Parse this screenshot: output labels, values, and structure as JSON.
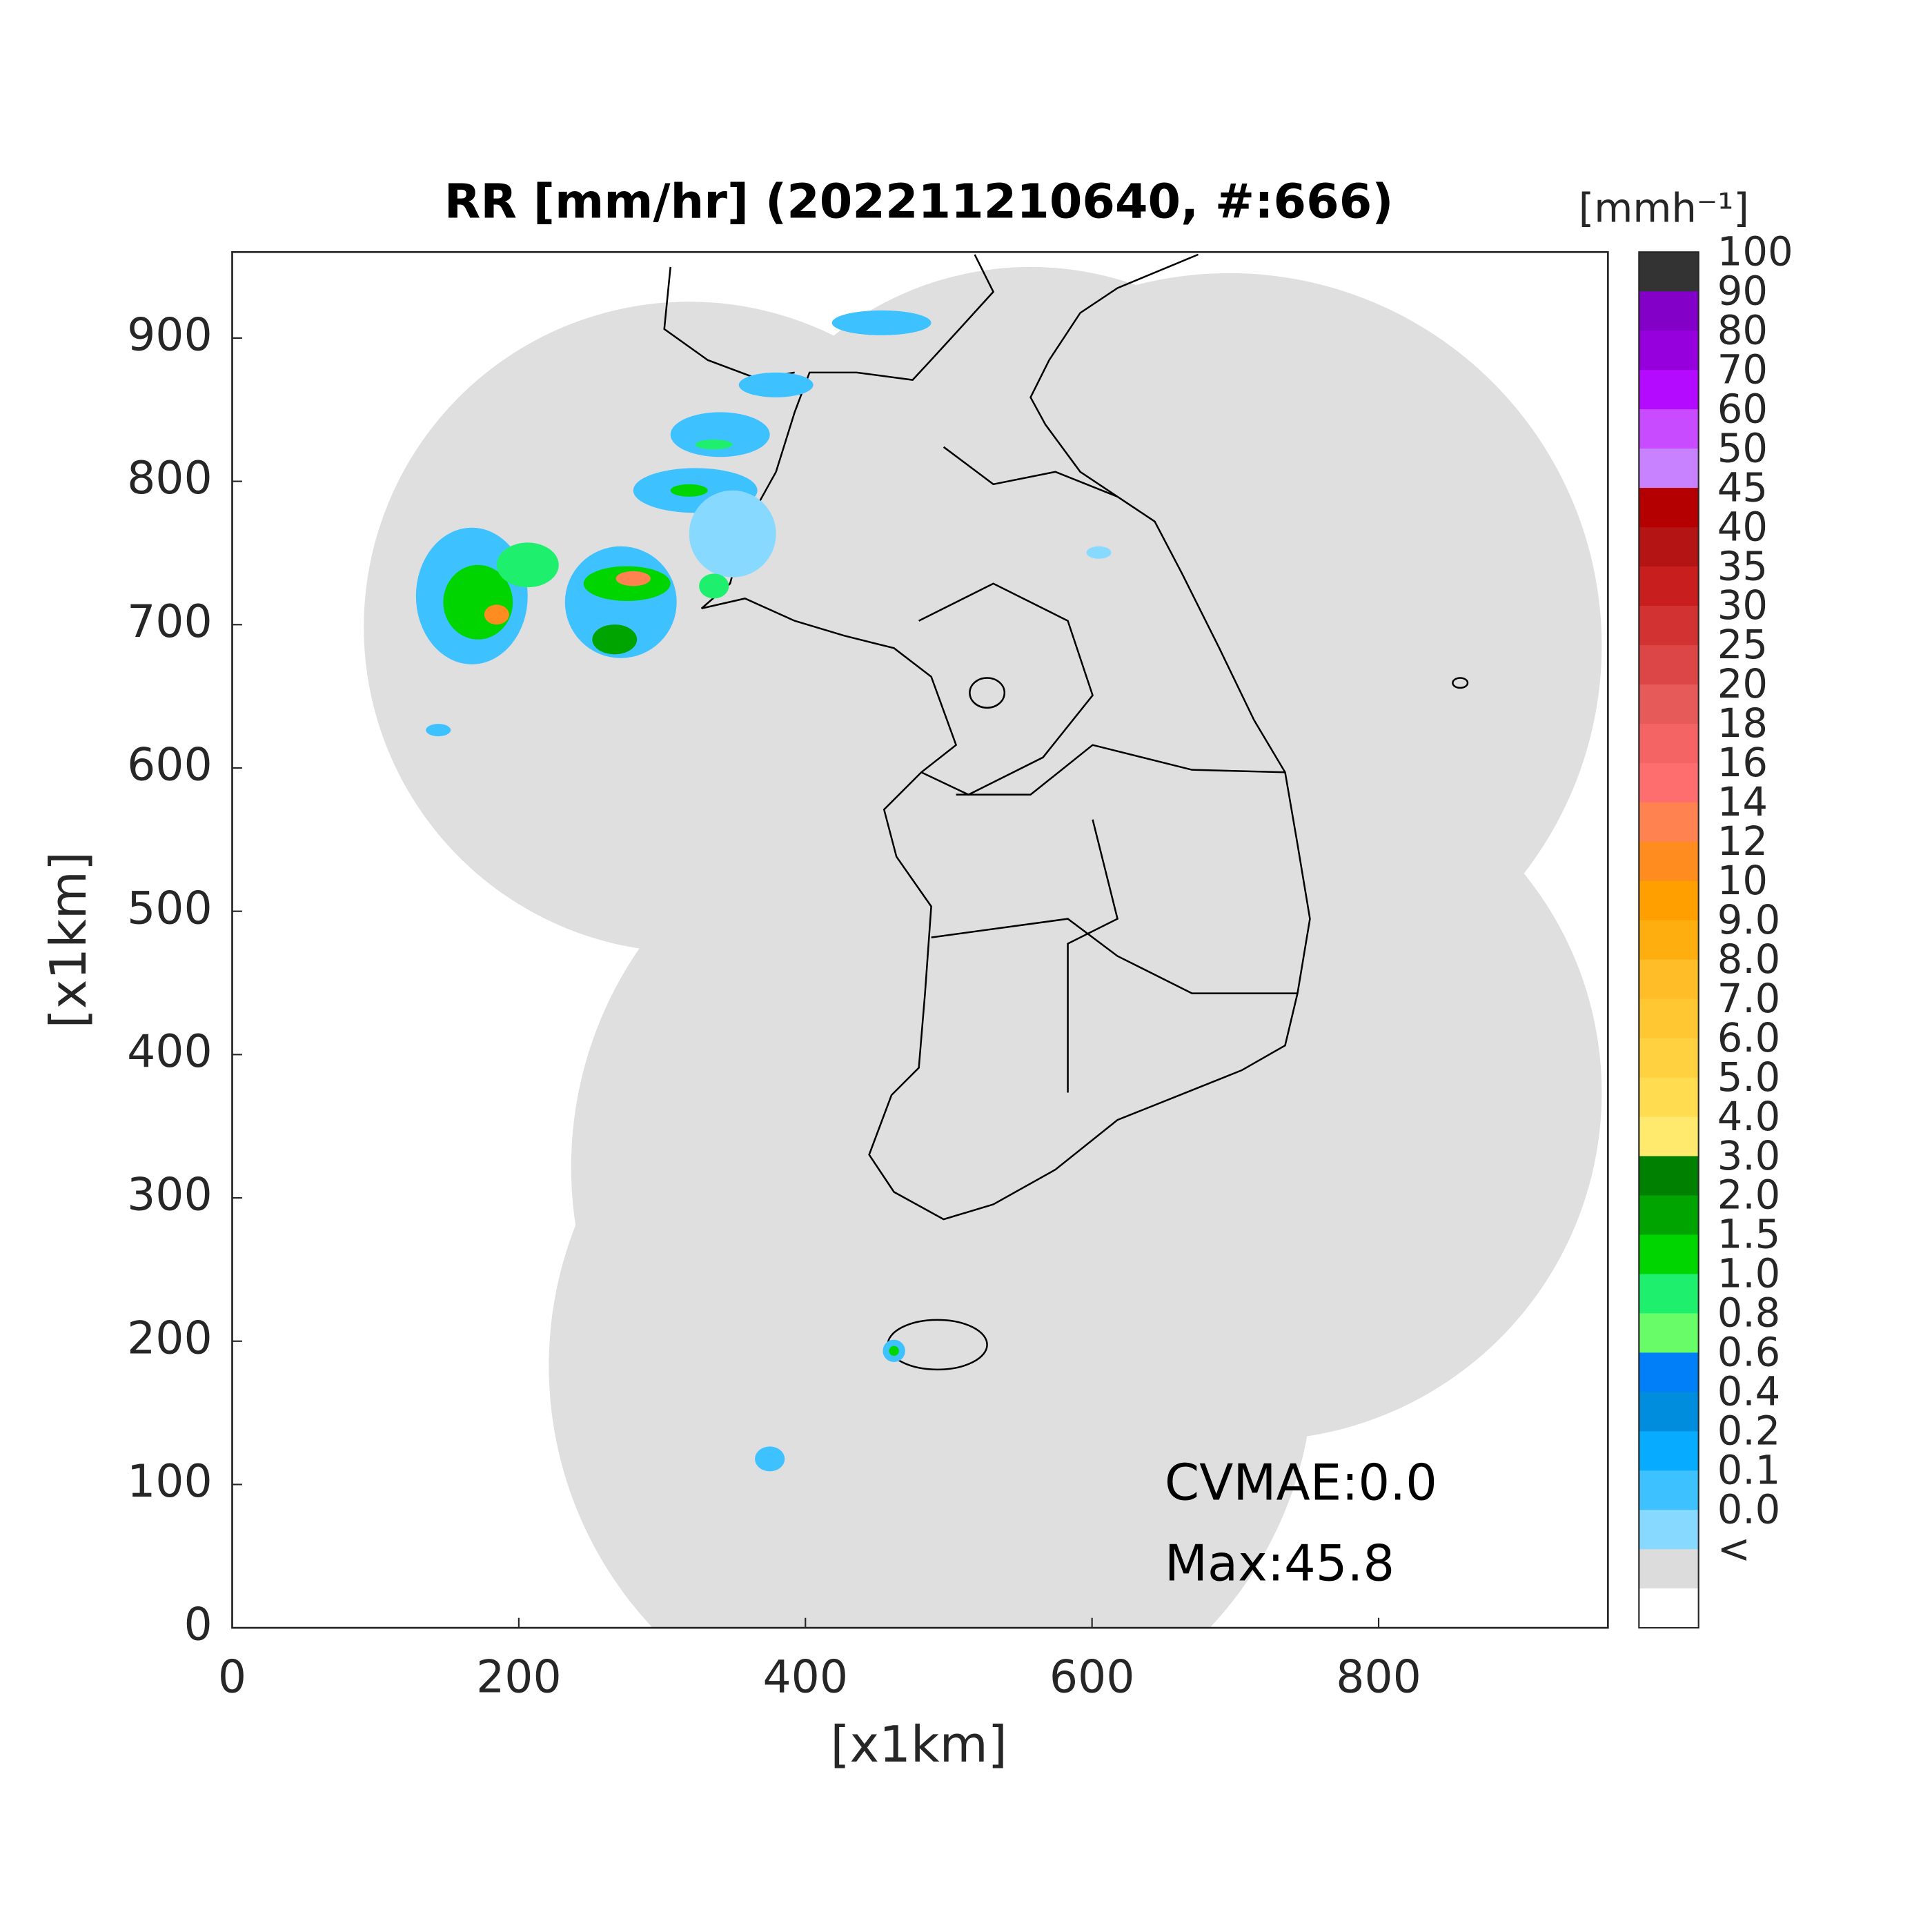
{
  "chart_data": {
    "type": "map",
    "title": "RR [mm/hr] (202211210640, #:666)",
    "xlabel": "[x1km]",
    "ylabel": "[x1km]",
    "xlim": [
      0,
      960
    ],
    "ylim": [
      0,
      960
    ],
    "xticks": [
      0,
      200,
      400,
      600,
      800
    ],
    "yticks": [
      0,
      100,
      200,
      300,
      400,
      500,
      600,
      700,
      800,
      900
    ],
    "annotations": [
      "CVMAE:0.0",
      "Max:45.8"
    ],
    "colorbar": {
      "unit": "[mmh⁻¹]",
      "labels": [
        "100",
        "90",
        "80",
        "70",
        "60",
        "50",
        "45",
        "40",
        "35",
        "30",
        "25",
        "20",
        "18",
        "16",
        "14",
        "12",
        "10",
        "9.0",
        "8.0",
        "7.0",
        "6.0",
        "5.0",
        "4.0",
        "3.0",
        "2.0",
        "1.5",
        "1.0",
        "0.8",
        "0.6",
        "0.4",
        "0.2",
        "0.1",
        "0.0",
        "<"
      ],
      "colors": [
        "#333333",
        "#8200c8",
        "#9600dc",
        "#b40aff",
        "#c84bff",
        "#c882ff",
        "#b40000",
        "#b41414",
        "#c81e1e",
        "#d23232",
        "#dc4646",
        "#e65a5a",
        "#f56464",
        "#ff6e6e",
        "#ff8250",
        "#ff8c1e",
        "#ffa000",
        "#ffae10",
        "#ffbe28",
        "#ffc732",
        "#ffd040",
        "#ffdc50",
        "#ffea6e",
        "#008000",
        "#00a400",
        "#00d500",
        "#1ef06e",
        "#69fc69",
        "#007ff9",
        "#008dde",
        "#07abff",
        "#3ec1ff",
        "#87d9ff",
        "#dcdcdc",
        "#ffffff"
      ]
    }
  }
}
